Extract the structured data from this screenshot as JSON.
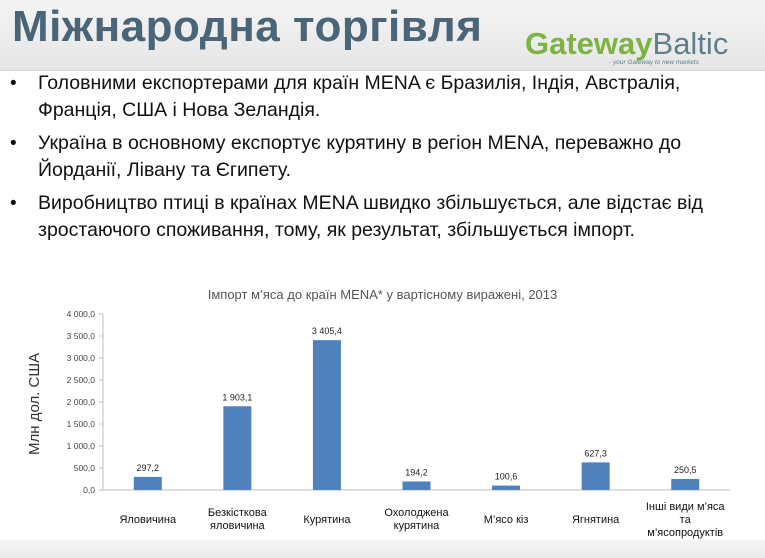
{
  "slide": {
    "title": "Міжнародна торгівля",
    "logo": {
      "word_green": "Gateway",
      "word_gray": "Baltic",
      "tagline": "- your Gateway to new markets"
    },
    "bullets": [
      "Головними експортерами для країн MENA є Бразилія, Індія, Австралія, Франція, США і Нова Зеландія.",
      "Україна в основному експортує курятину в регіон MENA, переважно до Йорданії, Лівану та Єгипету.",
      "Виробництво птиці в країнах MENA швидко збільшується, але відстає від  зростаючого споживання, тому, як результат, збільшується імпорт."
    ],
    "bullet_glyph": "•"
  },
  "chart_data": {
    "type": "bar",
    "title": "Імпорт м’яса до країн MENA* у вартісному виражені, 2013",
    "xlabel": "",
    "ylabel": "Млн дол. США",
    "categories": [
      "Яловичина",
      "Безкісткова яловичина",
      "Курятина",
      "Охолоджена курятина",
      "М’ясо кіз",
      "Ягнятина",
      "Інші види м’яса та м’ясопродуктів"
    ],
    "values": [
      297.2,
      1903.1,
      3405.4,
      194.2,
      100.6,
      627.3,
      250.5
    ],
    "value_labels": [
      "297,2",
      "1 903,1",
      "3 405,4",
      "194,2",
      "100,6",
      "627,3",
      "250,5"
    ],
    "ylim": [
      0,
      4000
    ],
    "y_ticks": [
      0,
      500,
      1000,
      1500,
      2000,
      2500,
      3000,
      3500,
      4000
    ],
    "y_tick_labels": [
      "0,0",
      "500,0",
      "1 000,0",
      "1 500,0",
      "2 000,0",
      "2 500,0",
      "3 000,0",
      "3 500,0",
      "4 000,0"
    ],
    "bar_color": "#4f81bd",
    "grid": false,
    "legend": "none"
  }
}
